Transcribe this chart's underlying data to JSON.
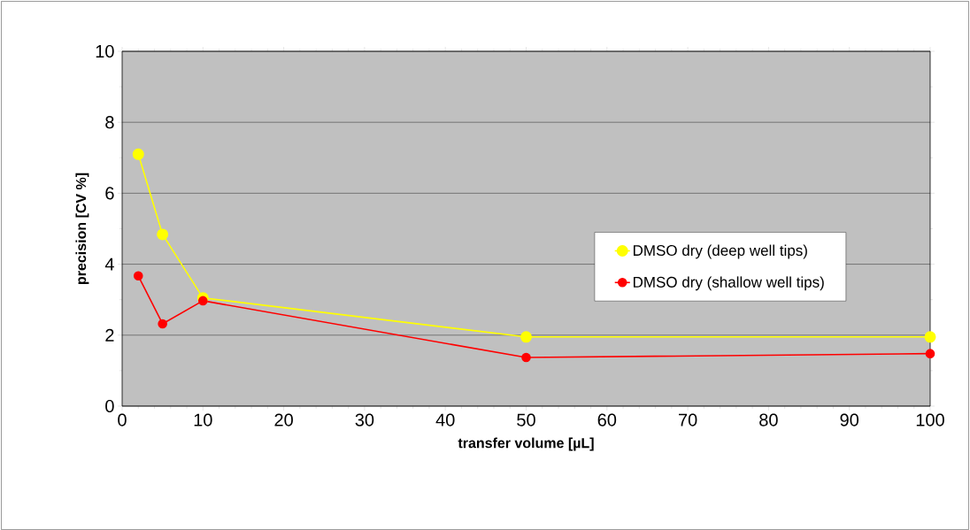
{
  "chart_data": {
    "type": "line",
    "xlabel": "transfer volume [µL]",
    "ylabel": "precision [CV %]",
    "x": [
      2,
      5,
      10,
      50,
      100
    ],
    "series": [
      {
        "name": "DMSO dry (deep well tips)",
        "color": "#ffff00",
        "values": [
          7.1,
          4.84,
          3.05,
          1.95,
          1.95
        ]
      },
      {
        "name": "DMSO dry (shallow well tips)",
        "color": "#ff0000",
        "values": [
          3.67,
          2.32,
          2.97,
          1.37,
          1.48
        ]
      }
    ],
    "xlim": [
      0,
      100
    ],
    "xticks": [
      0,
      10,
      20,
      30,
      40,
      50,
      60,
      70,
      80,
      90,
      100
    ],
    "ylim": [
      0,
      10
    ],
    "yticks": [
      0,
      2,
      4,
      6,
      8,
      10
    ],
    "grid": "y",
    "legend": "right",
    "marker": "circle",
    "line_style": "solid"
  }
}
